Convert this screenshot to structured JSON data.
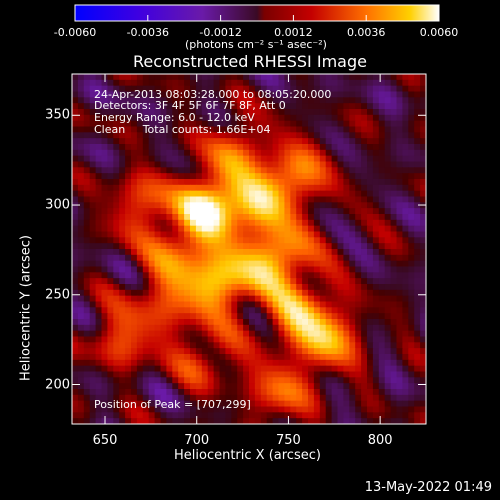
{
  "chart_data": {
    "type": "heatmap",
    "title": "Reconstructed RHESSI Image",
    "xlabel": "Heliocentric X (arcsec)",
    "ylabel": "Heliocentric Y (arcsec)",
    "xlim": [
      632,
      825
    ],
    "ylim": [
      178,
      373
    ],
    "x_ticks": [
      650,
      700,
      750,
      800
    ],
    "y_ticks": [
      200,
      250,
      300,
      350
    ],
    "annotations": [
      "24-Apr-2013 08:03:28.000 to 08:05:20.000",
      "Detectors: 3F 4F 5F 6F 7F 8F, Att 0",
      "Energy Range: 6.0 - 12.0 keV",
      "Clean     Total counts: 1.66E+04"
    ],
    "peak_label": "Position of Peak = [707,299]",
    "peak": [
      707,
      299
    ],
    "colorbar": {
      "range": [
        -0.006,
        0.006
      ],
      "tick_labels": [
        "-0.0060",
        "-0.0036",
        "-0.0012",
        "0.0012",
        "0.0036",
        "0.0060"
      ],
      "units_label": "(photons cm⁻² s⁻¹ asec⁻²)"
    },
    "sources": [
      {
        "x": 707,
        "y": 299,
        "value": 0.006
      },
      {
        "x": 735,
        "y": 301,
        "value": 0.004
      },
      {
        "x": 713,
        "y": 258,
        "value": 0.005
      },
      {
        "x": 744,
        "y": 270,
        "value": 0.0048
      },
      {
        "x": 771,
        "y": 225,
        "value": 0.004
      },
      {
        "x": 755,
        "y": 240,
        "value": 0.0035
      },
      {
        "x": 690,
        "y": 272,
        "value": 0.003
      },
      {
        "x": 755,
        "y": 318,
        "value": 0.0032
      },
      {
        "x": 722,
        "y": 330,
        "value": 0.0028
      },
      {
        "x": 670,
        "y": 300,
        "value": 0.0028
      },
      {
        "x": 682,
        "y": 243,
        "value": 0.0025
      },
      {
        "x": 745,
        "y": 195,
        "value": 0.003
      },
      {
        "x": 705,
        "y": 215,
        "value": 0.0022
      },
      {
        "x": 658,
        "y": 225,
        "value": 0.0025
      }
    ],
    "timestamp": "13-May-2022 01:49"
  }
}
